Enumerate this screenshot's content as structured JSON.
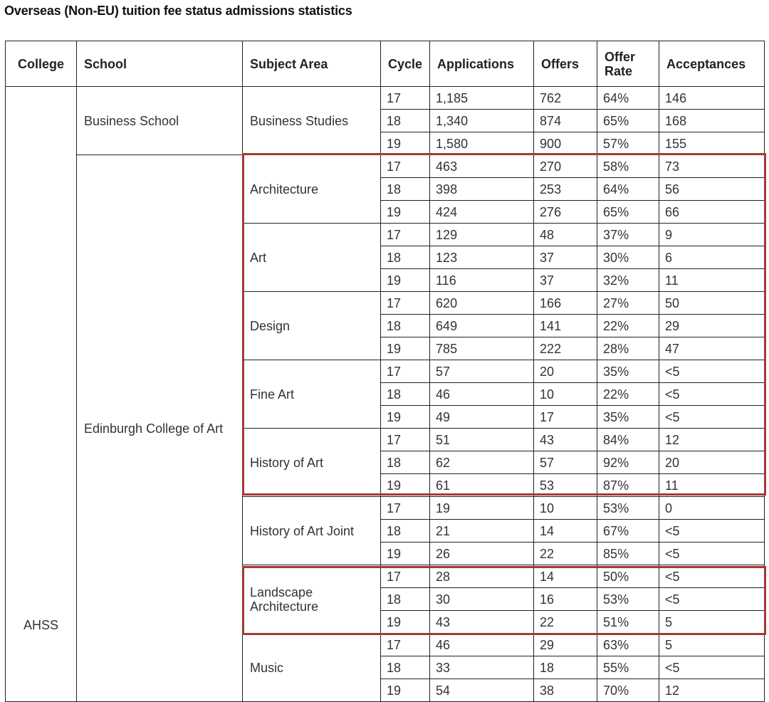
{
  "title": "Overseas (Non-EU) tuition fee status admissions statistics",
  "colors": {
    "highlight": "#a33a33",
    "border": "#222222"
  },
  "headers": [
    "College",
    "School",
    "Subject Area",
    "Cycle",
    "Applications",
    "Offers",
    "Offer Rate",
    "Acceptances"
  ],
  "college": "AHSS",
  "schools": [
    {
      "name": "Business School",
      "subjects": [
        {
          "name": "Business Studies",
          "highlighted": false,
          "rows": [
            [
              "17",
              "1,185",
              "762",
              "64%",
              "146"
            ],
            [
              "18",
              "1,340",
              "874",
              "65%",
              "168"
            ],
            [
              "19",
              "1,580",
              "900",
              "57%",
              "155"
            ]
          ]
        }
      ]
    },
    {
      "name": "Edinburgh College of Art",
      "subjects": [
        {
          "name": "Architecture",
          "highlighted": true,
          "rows": [
            [
              "17",
              "463",
              "270",
              "58%",
              "73"
            ],
            [
              "18",
              "398",
              "253",
              "64%",
              "56"
            ],
            [
              "19",
              "424",
              "276",
              "65%",
              "66"
            ]
          ]
        },
        {
          "name": "Art",
          "highlighted": true,
          "rows": [
            [
              "17",
              "129",
              "48",
              "37%",
              "9"
            ],
            [
              "18",
              "123",
              "37",
              "30%",
              "6"
            ],
            [
              "19",
              "116",
              "37",
              "32%",
              "11"
            ]
          ]
        },
        {
          "name": "Design",
          "highlighted": true,
          "rows": [
            [
              "17",
              "620",
              "166",
              "27%",
              "50"
            ],
            [
              "18",
              "649",
              "141",
              "22%",
              "29"
            ],
            [
              "19",
              "785",
              "222",
              "28%",
              "47"
            ]
          ]
        },
        {
          "name": "Fine Art",
          "highlighted": true,
          "rows": [
            [
              "17",
              "57",
              "20",
              "35%",
              "<5"
            ],
            [
              "18",
              "46",
              "10",
              "22%",
              "<5"
            ],
            [
              "19",
              "49",
              "17",
              "35%",
              "<5"
            ]
          ]
        },
        {
          "name": "History of Art",
          "highlighted": true,
          "rows": [
            [
              "17",
              "51",
              "43",
              "84%",
              "12"
            ],
            [
              "18",
              "62",
              "57",
              "92%",
              "20"
            ],
            [
              "19",
              "61",
              "53",
              "87%",
              "11"
            ]
          ]
        },
        {
          "name": "History of Art Joint",
          "highlighted": false,
          "rows": [
            [
              "17",
              "19",
              "10",
              "53%",
              "0"
            ],
            [
              "18",
              "21",
              "14",
              "67%",
              "<5"
            ],
            [
              "19",
              "26",
              "22",
              "85%",
              "<5"
            ]
          ]
        },
        {
          "name": "Landscape Architecture",
          "highlighted": true,
          "rows": [
            [
              "17",
              "28",
              "14",
              "50%",
              "<5"
            ],
            [
              "18",
              "30",
              "16",
              "53%",
              "<5"
            ],
            [
              "19",
              "43",
              "22",
              "51%",
              "5"
            ]
          ]
        },
        {
          "name": "Music",
          "highlighted": false,
          "rows": [
            [
              "17",
              "46",
              "29",
              "63%",
              "5"
            ],
            [
              "18",
              "33",
              "18",
              "55%",
              "<5"
            ],
            [
              "19",
              "54",
              "38",
              "70%",
              "12"
            ]
          ]
        }
      ]
    }
  ]
}
